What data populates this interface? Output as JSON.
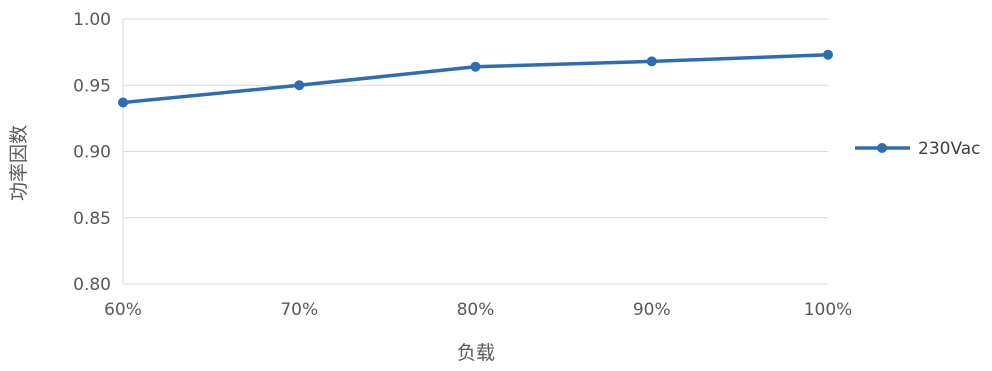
{
  "chart_data": {
    "type": "line",
    "categories": [
      "60%",
      "70%",
      "80%",
      "90%",
      "100%"
    ],
    "series": [
      {
        "name": "230Vac",
        "values": [
          0.937,
          0.95,
          0.964,
          0.968,
          0.973
        ]
      }
    ],
    "title": "",
    "xlabel": "负载",
    "ylabel": "功率因数",
    "ylim": [
      0.8,
      1.0
    ],
    "yticks": [
      "0.80",
      "0.85",
      "0.90",
      "0.95",
      "1.00"
    ],
    "grid": "horizontal",
    "legend_position": "right",
    "colors": {
      "series": "#2e6db4",
      "grid": "#d9d9d9",
      "text": "#595959"
    }
  }
}
